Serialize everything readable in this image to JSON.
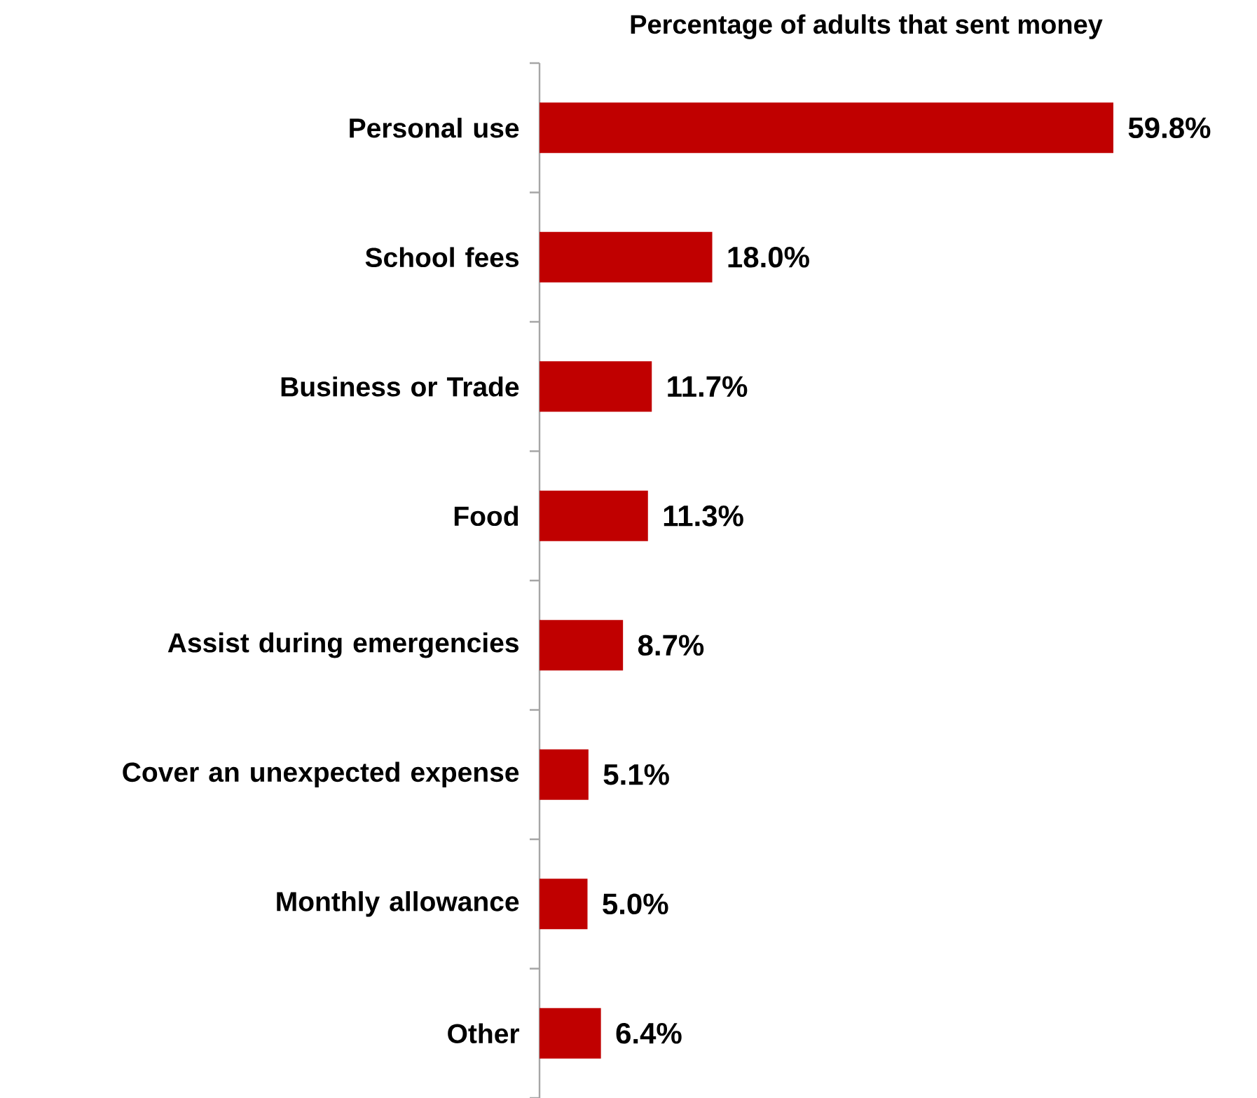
{
  "chart_data": {
    "type": "bar",
    "orientation": "horizontal",
    "title": "Percentage of adults that sent money",
    "categories": [
      "Personal use",
      "School fees",
      "Business or Trade",
      "Food",
      "Assist during emergencies",
      "Cover an unexpected expense",
      "Monthly allowance",
      "Other"
    ],
    "values": [
      59.8,
      18.0,
      11.7,
      11.3,
      8.7,
      5.1,
      5.0,
      6.4
    ],
    "value_labels": [
      "59.8%",
      "18.0%",
      "11.7%",
      "11.3%",
      "8.7%",
      "5.1%",
      "5.0%",
      "6.4%"
    ],
    "color": "#c00000"
  }
}
